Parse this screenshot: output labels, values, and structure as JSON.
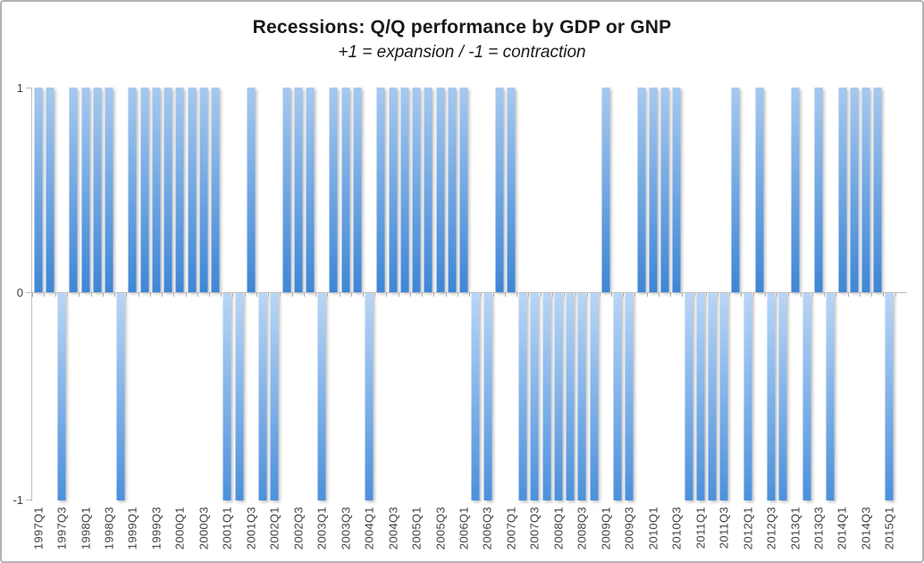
{
  "chart_data": {
    "type": "bar",
    "title": "Recessions: Q/Q performance by GDP or GNP",
    "subtitle": "+1 = expansion / -1 = contraction",
    "categories": [
      "1997Q1",
      "1997Q2",
      "1997Q3",
      "1997Q4",
      "1998Q1",
      "1998Q2",
      "1998Q3",
      "1998Q4",
      "1999Q1",
      "1999Q2",
      "1999Q3",
      "1999Q4",
      "2000Q1",
      "2000Q2",
      "2000Q3",
      "2000Q4",
      "2001Q1",
      "2001Q2",
      "2001Q3",
      "2001Q4",
      "2002Q1",
      "2002Q2",
      "2002Q3",
      "2002Q4",
      "2003Q1",
      "2003Q2",
      "2003Q3",
      "2003Q4",
      "2004Q1",
      "2004Q2",
      "2004Q3",
      "2004Q4",
      "2005Q1",
      "2005Q2",
      "2005Q3",
      "2005Q4",
      "2006Q1",
      "2006Q2",
      "2006Q3",
      "2006Q4",
      "2007Q1",
      "2007Q2",
      "2007Q3",
      "2007Q4",
      "2008Q1",
      "2008Q2",
      "2008Q3",
      "2008Q4",
      "2009Q1",
      "2009Q2",
      "2009Q3",
      "2009Q4",
      "2010Q1",
      "2010Q2",
      "2010Q3",
      "2010Q4",
      "2011Q1",
      "2011Q2",
      "2011Q3",
      "2011Q4",
      "2012Q1",
      "2012Q2",
      "2012Q3",
      "2012Q4",
      "2013Q1",
      "2013Q2",
      "2013Q3",
      "2013Q4",
      "2014Q1",
      "2014Q2",
      "2014Q3",
      "2014Q4",
      "2015Q1"
    ],
    "values": [
      1,
      1,
      -1,
      1,
      1,
      1,
      1,
      -1,
      1,
      1,
      1,
      1,
      1,
      1,
      1,
      1,
      -1,
      -1,
      1,
      -1,
      -1,
      1,
      1,
      1,
      -1,
      1,
      1,
      1,
      -1,
      1,
      1,
      1,
      1,
      1,
      1,
      1,
      1,
      -1,
      -1,
      1,
      1,
      -1,
      -1,
      -1,
      -1,
      -1,
      -1,
      -1,
      1,
      -1,
      -1,
      1,
      1,
      1,
      1,
      -1,
      -1,
      -1,
      -1,
      1,
      -1,
      1,
      -1,
      -1,
      1,
      -1,
      1,
      -1,
      1,
      1,
      1,
      1,
      -1
    ],
    "x_label_interval": 2,
    "x_tick_labels": [
      "1997Q1",
      "1997Q3",
      "1998Q1",
      "1998Q3",
      "1999Q1",
      "1999Q3",
      "2000Q1",
      "2000Q3",
      "2001Q1",
      "2001Q3",
      "2002Q1",
      "2002Q3",
      "2003Q1",
      "2003Q3",
      "2004Q1",
      "2004Q3",
      "2005Q1",
      "2005Q3",
      "2006Q1",
      "2006Q3",
      "2007Q1",
      "2007Q3",
      "2008Q1",
      "2008Q3",
      "2009Q1",
      "2009Q3",
      "2010Q1",
      "2010Q3",
      "2011Q1",
      "2011Q3",
      "2012Q1",
      "2012Q3",
      "2013Q1",
      "2013Q3",
      "2014Q1",
      "2014Q3",
      "2015Q1"
    ],
    "ylim": [
      -1,
      1
    ],
    "y_tick_labels": {
      "top": "1",
      "zero": "0",
      "bottom": "-1"
    },
    "grid": false,
    "legend": false,
    "colors": {
      "bar_positive_gradient_top": "#a6c9ef",
      "bar_positive_gradient_bottom": "#3e86d6",
      "bar_negative_gradient_top": "#b9d6f6",
      "bar_negative_gradient_bottom": "#4c90db",
      "axis_line": "#bfbfbf",
      "tick": "#ababab",
      "axis_text": "#404040",
      "title_text": "#1a1a1a",
      "frame_border": "#b2b2b2"
    }
  }
}
